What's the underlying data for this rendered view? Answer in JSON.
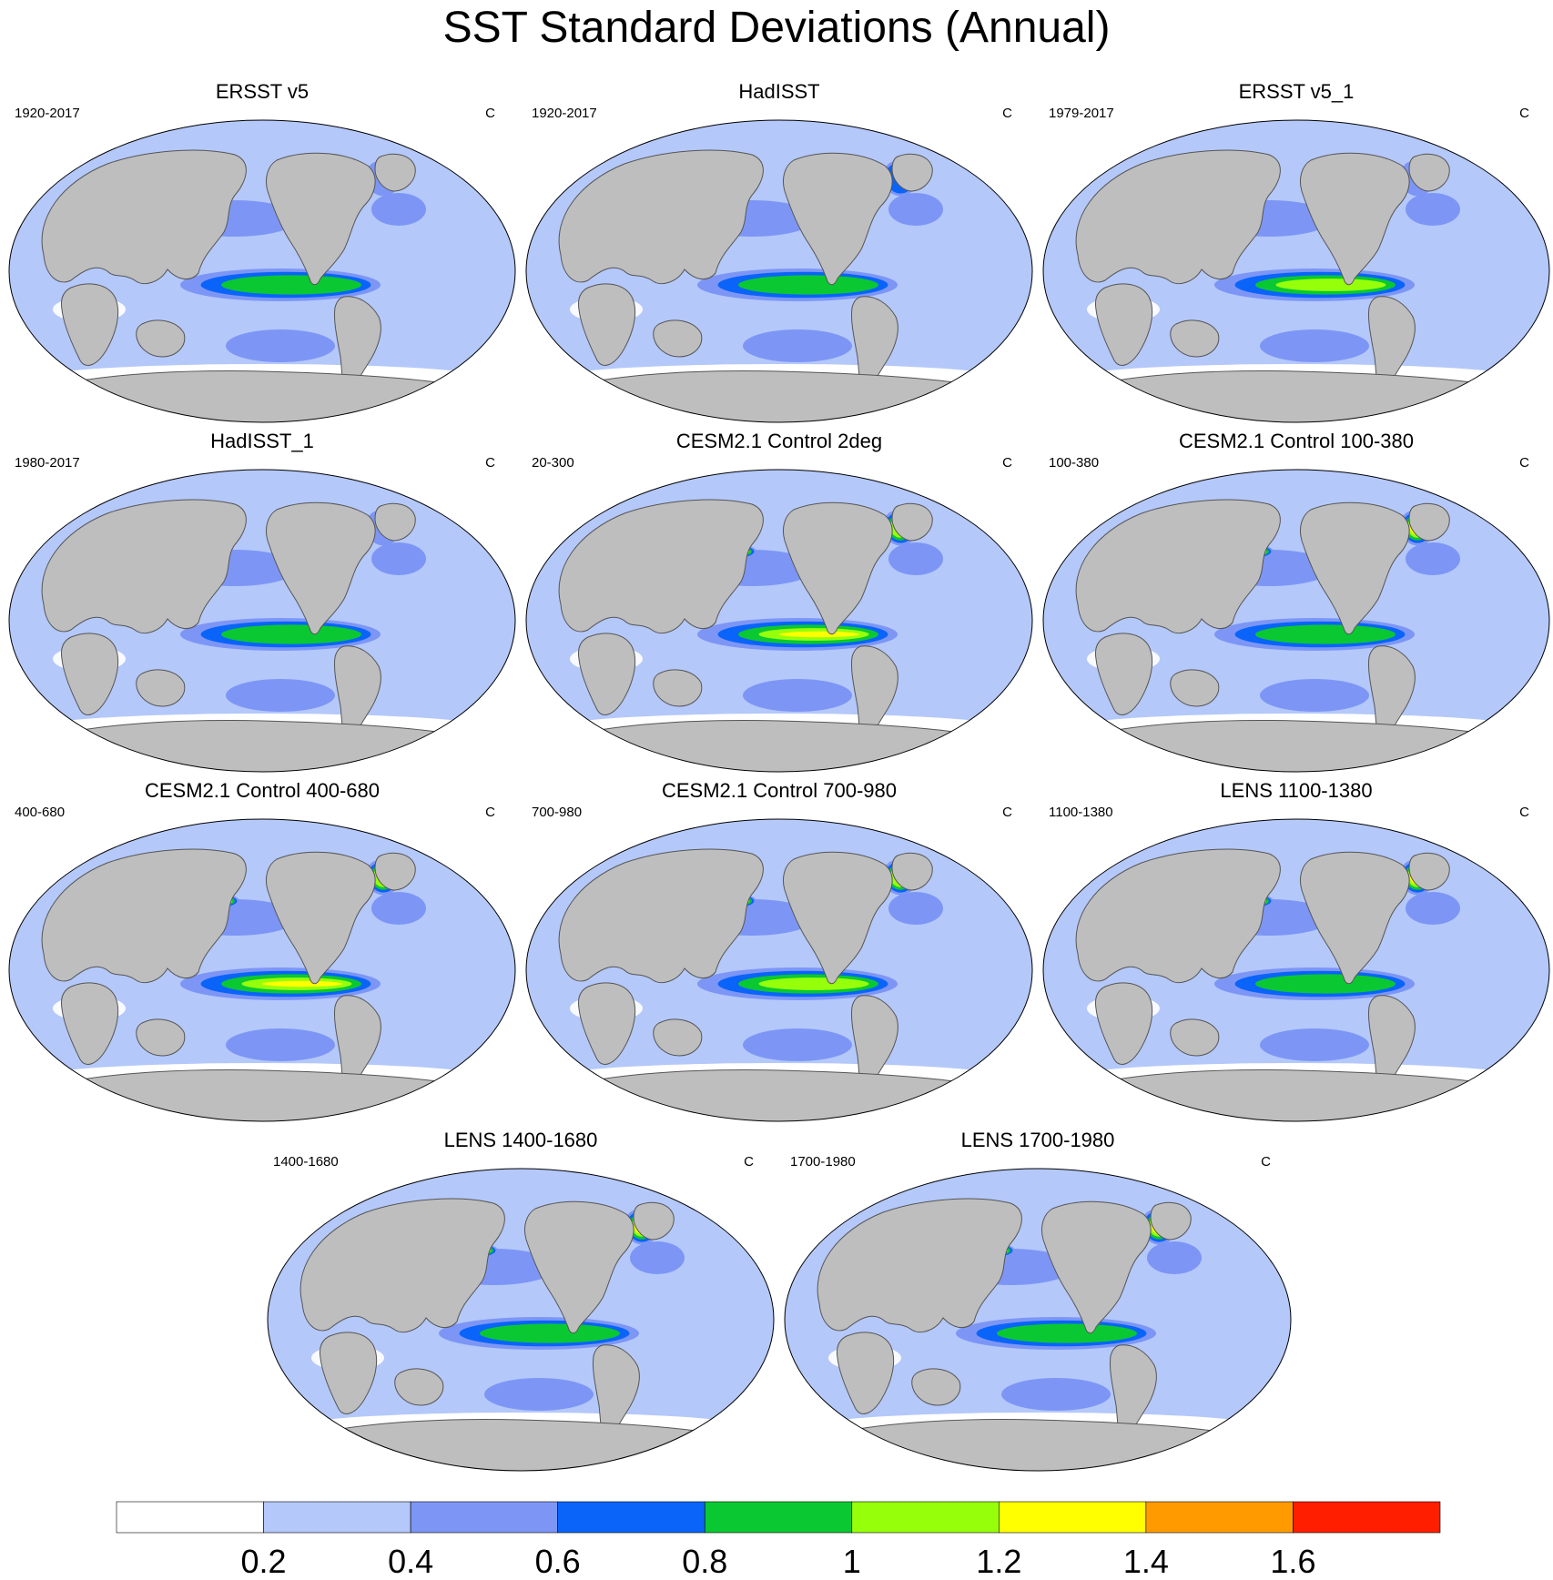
{
  "title": "SST Standard Deviations (Annual)",
  "panels": [
    {
      "title": "ERSST v5",
      "period": "1920-2017",
      "unit": "C",
      "nino_strength": 0.9,
      "kuroshio_strength": 0.35,
      "atlantic_strength": 0.5
    },
    {
      "title": "HadISST",
      "period": "1920-2017",
      "unit": "C",
      "nino_strength": 0.8,
      "kuroshio_strength": 0.3,
      "atlantic_strength": 0.6
    },
    {
      "title": "ERSST v5_1",
      "period": "1979-2017",
      "unit": "C",
      "nino_strength": 1.0,
      "kuroshio_strength": 0.3,
      "atlantic_strength": 0.45
    },
    {
      "title": "HadISST_1",
      "period": "1980-2017",
      "unit": "C",
      "nino_strength": 0.95,
      "kuroshio_strength": 0.3,
      "atlantic_strength": 0.45
    },
    {
      "title": "CESM2.1 Control 2deg",
      "period": "20-300",
      "unit": "C",
      "nino_strength": 1.3,
      "kuroshio_strength": 1.1,
      "atlantic_strength": 1.1
    },
    {
      "title": "CESM2.1 Control 100-380",
      "period": "100-380",
      "unit": "C",
      "nino_strength": 0.9,
      "kuroshio_strength": 1.3,
      "atlantic_strength": 1.2
    },
    {
      "title": "CESM2.1 Control 400-680",
      "period": "400-680",
      "unit": "C",
      "nino_strength": 1.2,
      "kuroshio_strength": 1.0,
      "atlantic_strength": 1.1
    },
    {
      "title": "CESM2.1 Control 700-980",
      "period": "700-980",
      "unit": "C",
      "nino_strength": 1.0,
      "kuroshio_strength": 1.0,
      "atlantic_strength": 1.0
    },
    {
      "title": "LENS 1100-1380",
      "period": "1100-1380",
      "unit": "C",
      "nino_strength": 0.85,
      "kuroshio_strength": 1.6,
      "atlantic_strength": 1.5
    },
    {
      "title": "LENS 1400-1680",
      "period": "1400-1680",
      "unit": "C",
      "nino_strength": 0.85,
      "kuroshio_strength": 1.4,
      "atlantic_strength": 1.3
    },
    {
      "title": "LENS 1700-1980",
      "period": "1700-1980",
      "unit": "C",
      "nino_strength": 0.85,
      "kuroshio_strength": 1.45,
      "atlantic_strength": 1.3
    }
  ],
  "colorbar": {
    "levels": [
      0.2,
      0.4,
      0.6,
      0.8,
      1,
      1.2,
      1.4,
      1.6
    ],
    "labels": [
      "0.2",
      "0.4",
      "0.6",
      "0.8",
      "1",
      "1.2",
      "1.4",
      "1.6"
    ],
    "colors": [
      "#ffffff",
      "#b4c8fa",
      "#7d96f5",
      "#0a64fa",
      "#0ac832",
      "#96ff0a",
      "#ffff00",
      "#ff9b00",
      "#ff1e00"
    ]
  },
  "style": {
    "land": "#bebebe",
    "ocean_base": "#b4c8fa",
    "coast": "#555555"
  }
}
